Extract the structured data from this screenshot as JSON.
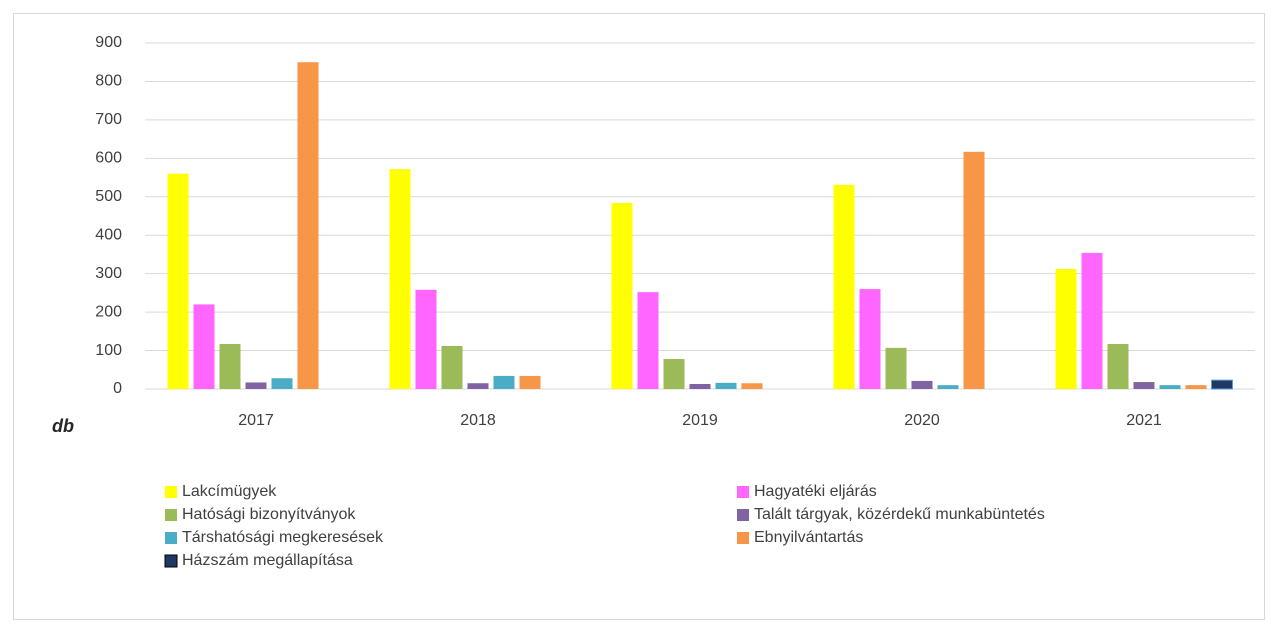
{
  "chart_data": {
    "type": "bar",
    "y_label": "db",
    "categories": [
      "2017",
      "2018",
      "2019",
      "2020",
      "2021"
    ],
    "series": [
      {
        "name": "Lakcímügyek",
        "color": "#ffff00",
        "values": [
          560,
          572,
          484,
          531,
          312
        ]
      },
      {
        "name": "Hagyatéki eljárás",
        "color": "#ff66ff",
        "values": [
          220,
          258,
          252,
          260,
          354
        ]
      },
      {
        "name": "Hatósági bizonyítványok",
        "color": "#9bbb59",
        "values": [
          117,
          112,
          78,
          107,
          117
        ]
      },
      {
        "name": "Talált tárgyak, közérdekű munkabüntetés",
        "color": "#8064a2",
        "values": [
          17,
          15,
          13,
          21,
          18
        ]
      },
      {
        "name": "Társhatósági  megkeresések",
        "color": "#4bacc6",
        "values": [
          28,
          34,
          16,
          10,
          10
        ]
      },
      {
        "name": "Ebnyilvántartás",
        "color": "#f79646",
        "values": [
          850,
          34,
          15,
          617,
          10
        ]
      },
      {
        "name": "Házszám megállapítása",
        "color": "#1f3864",
        "values": [
          0,
          0,
          0,
          0,
          23
        ]
      }
    ],
    "ylim": [
      0,
      900
    ],
    "yticks": [
      0,
      100,
      200,
      300,
      400,
      500,
      600,
      700,
      800,
      900
    ],
    "grid": true
  }
}
